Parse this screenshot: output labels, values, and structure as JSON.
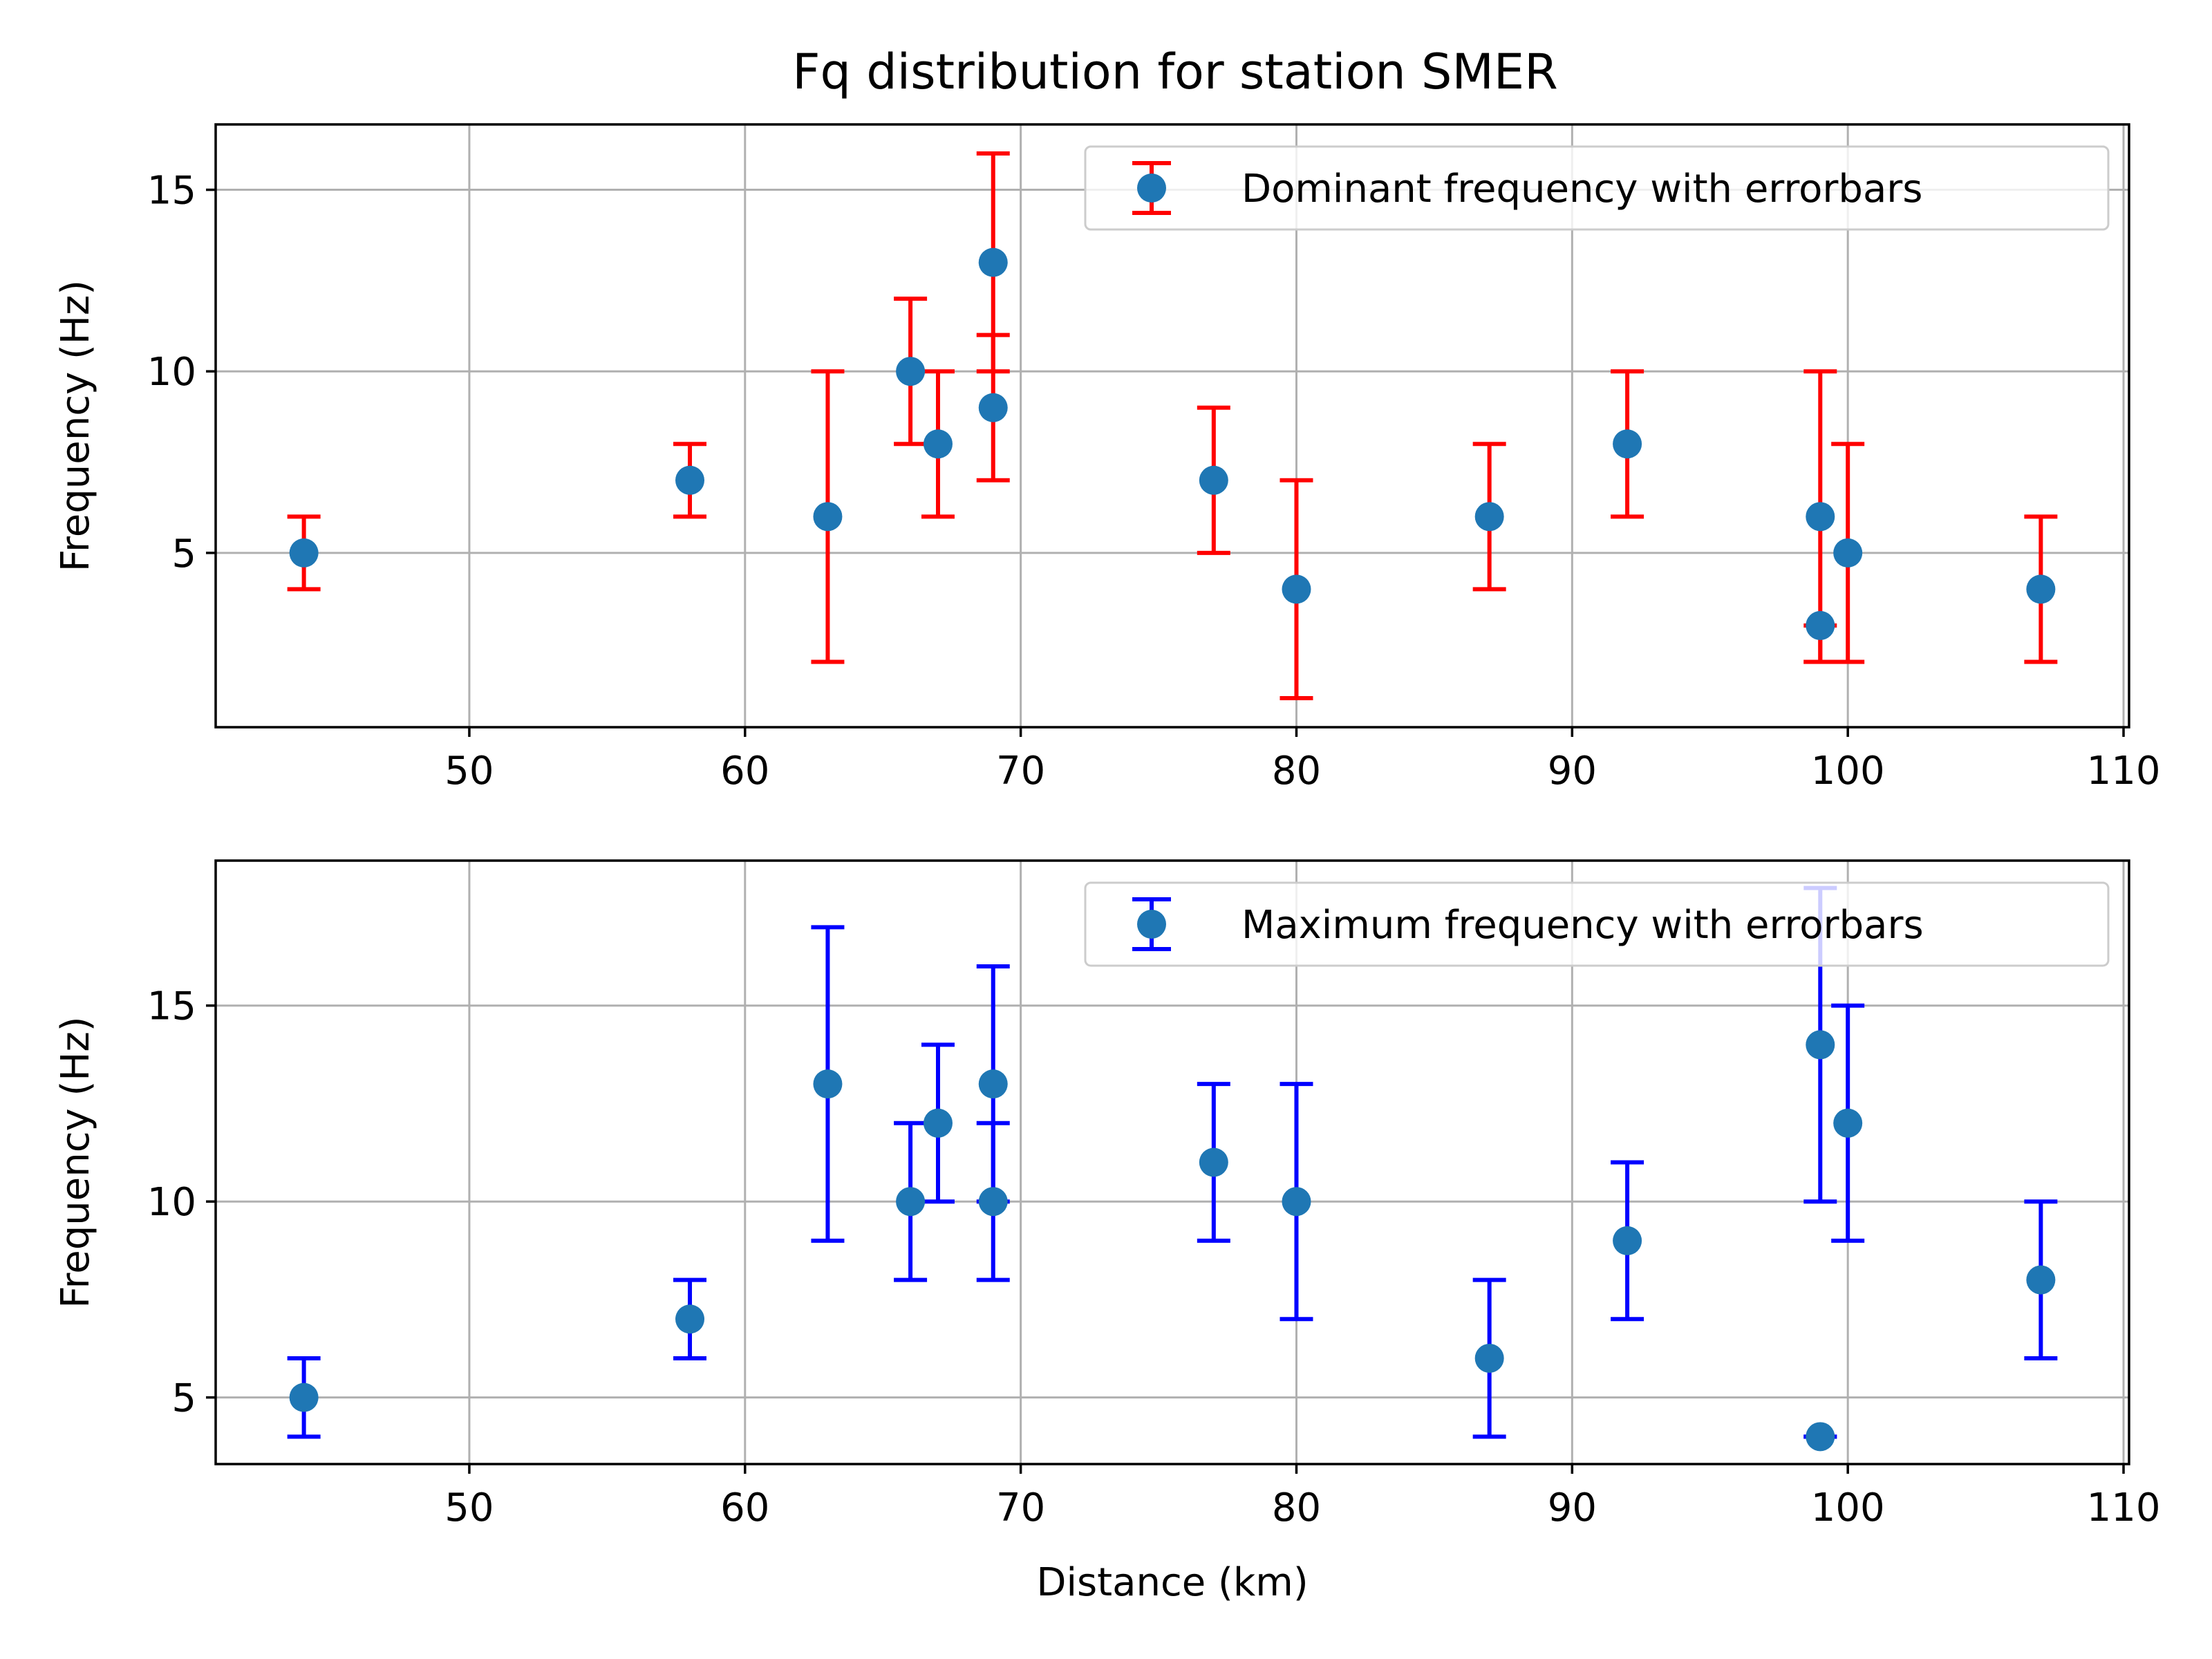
{
  "figure_title": "Fq distribution for station SMER",
  "chart_data": [
    {
      "type": "scatter",
      "title": "Fq distribution for station SMER",
      "xlabel": "",
      "ylabel": "Frequency (Hz)",
      "xlim": [
        40.8,
        110.2
      ],
      "ylim": [
        0.2,
        16.8
      ],
      "xticks": [
        50,
        60,
        70,
        80,
        90,
        100,
        110
      ],
      "yticks": [
        5,
        10,
        15
      ],
      "grid": true,
      "legend_position": "top-right",
      "series": [
        {
          "name": "Dominant frequency with errorbars",
          "marker_color": "#1f77b4",
          "errorbar_color": "#ff0000",
          "points": [
            {
              "x": 44,
              "y": 5,
              "ylow": 4,
              "yhigh": 6
            },
            {
              "x": 58,
              "y": 7,
              "ylow": 6,
              "yhigh": 8
            },
            {
              "x": 63,
              "y": 6,
              "ylow": 2,
              "yhigh": 10
            },
            {
              "x": 66,
              "y": 10,
              "ylow": 8,
              "yhigh": 12
            },
            {
              "x": 67,
              "y": 8,
              "ylow": 6,
              "yhigh": 10
            },
            {
              "x": 69,
              "y": 13,
              "ylow": 10,
              "yhigh": 16
            },
            {
              "x": 69,
              "y": 9,
              "ylow": 7,
              "yhigh": 11
            },
            {
              "x": 77,
              "y": 7,
              "ylow": 5,
              "yhigh": 9
            },
            {
              "x": 80,
              "y": 4,
              "ylow": 1,
              "yhigh": 7
            },
            {
              "x": 87,
              "y": 6,
              "ylow": 4,
              "yhigh": 8
            },
            {
              "x": 92,
              "y": 8,
              "ylow": 6,
              "yhigh": 10
            },
            {
              "x": 99,
              "y": 6,
              "ylow": 2,
              "yhigh": 10
            },
            {
              "x": 99,
              "y": 3,
              "ylow": 2,
              "yhigh": 3
            },
            {
              "x": 100,
              "y": 5,
              "ylow": 2,
              "yhigh": 8
            },
            {
              "x": 107,
              "y": 4,
              "ylow": 2,
              "yhigh": 6
            }
          ]
        }
      ]
    },
    {
      "type": "scatter",
      "title": "",
      "xlabel": "Distance (km)",
      "ylabel": "Frequency (Hz)",
      "xlim": [
        40.8,
        110.2
      ],
      "ylim": [
        3.3,
        18.7
      ],
      "xticks": [
        50,
        60,
        70,
        80,
        90,
        100,
        110
      ],
      "yticks": [
        5,
        10,
        15
      ],
      "grid": true,
      "legend_position": "top-right",
      "series": [
        {
          "name": "Maximum frequency with errorbars",
          "marker_color": "#1f77b4",
          "errorbar_color": "#0000ff",
          "points": [
            {
              "x": 44,
              "y": 5,
              "ylow": 4,
              "yhigh": 6
            },
            {
              "x": 58,
              "y": 7,
              "ylow": 6,
              "yhigh": 8
            },
            {
              "x": 63,
              "y": 13,
              "ylow": 9,
              "yhigh": 17
            },
            {
              "x": 66,
              "y": 10,
              "ylow": 8,
              "yhigh": 12
            },
            {
              "x": 67,
              "y": 12,
              "ylow": 10,
              "yhigh": 14
            },
            {
              "x": 69,
              "y": 13,
              "ylow": 10,
              "yhigh": 16
            },
            {
              "x": 69,
              "y": 10,
              "ylow": 8,
              "yhigh": 12
            },
            {
              "x": 77,
              "y": 11,
              "ylow": 9,
              "yhigh": 13
            },
            {
              "x": 80,
              "y": 10,
              "ylow": 7,
              "yhigh": 13
            },
            {
              "x": 87,
              "y": 6,
              "ylow": 4,
              "yhigh": 8
            },
            {
              "x": 92,
              "y": 9,
              "ylow": 7,
              "yhigh": 11
            },
            {
              "x": 99,
              "y": 14,
              "ylow": 10,
              "yhigh": 18
            },
            {
              "x": 99,
              "y": 4,
              "ylow": 4,
              "yhigh": 4
            },
            {
              "x": 100,
              "y": 12,
              "ylow": 9,
              "yhigh": 15
            },
            {
              "x": 107,
              "y": 8,
              "ylow": 6,
              "yhigh": 10
            }
          ]
        }
      ]
    }
  ]
}
